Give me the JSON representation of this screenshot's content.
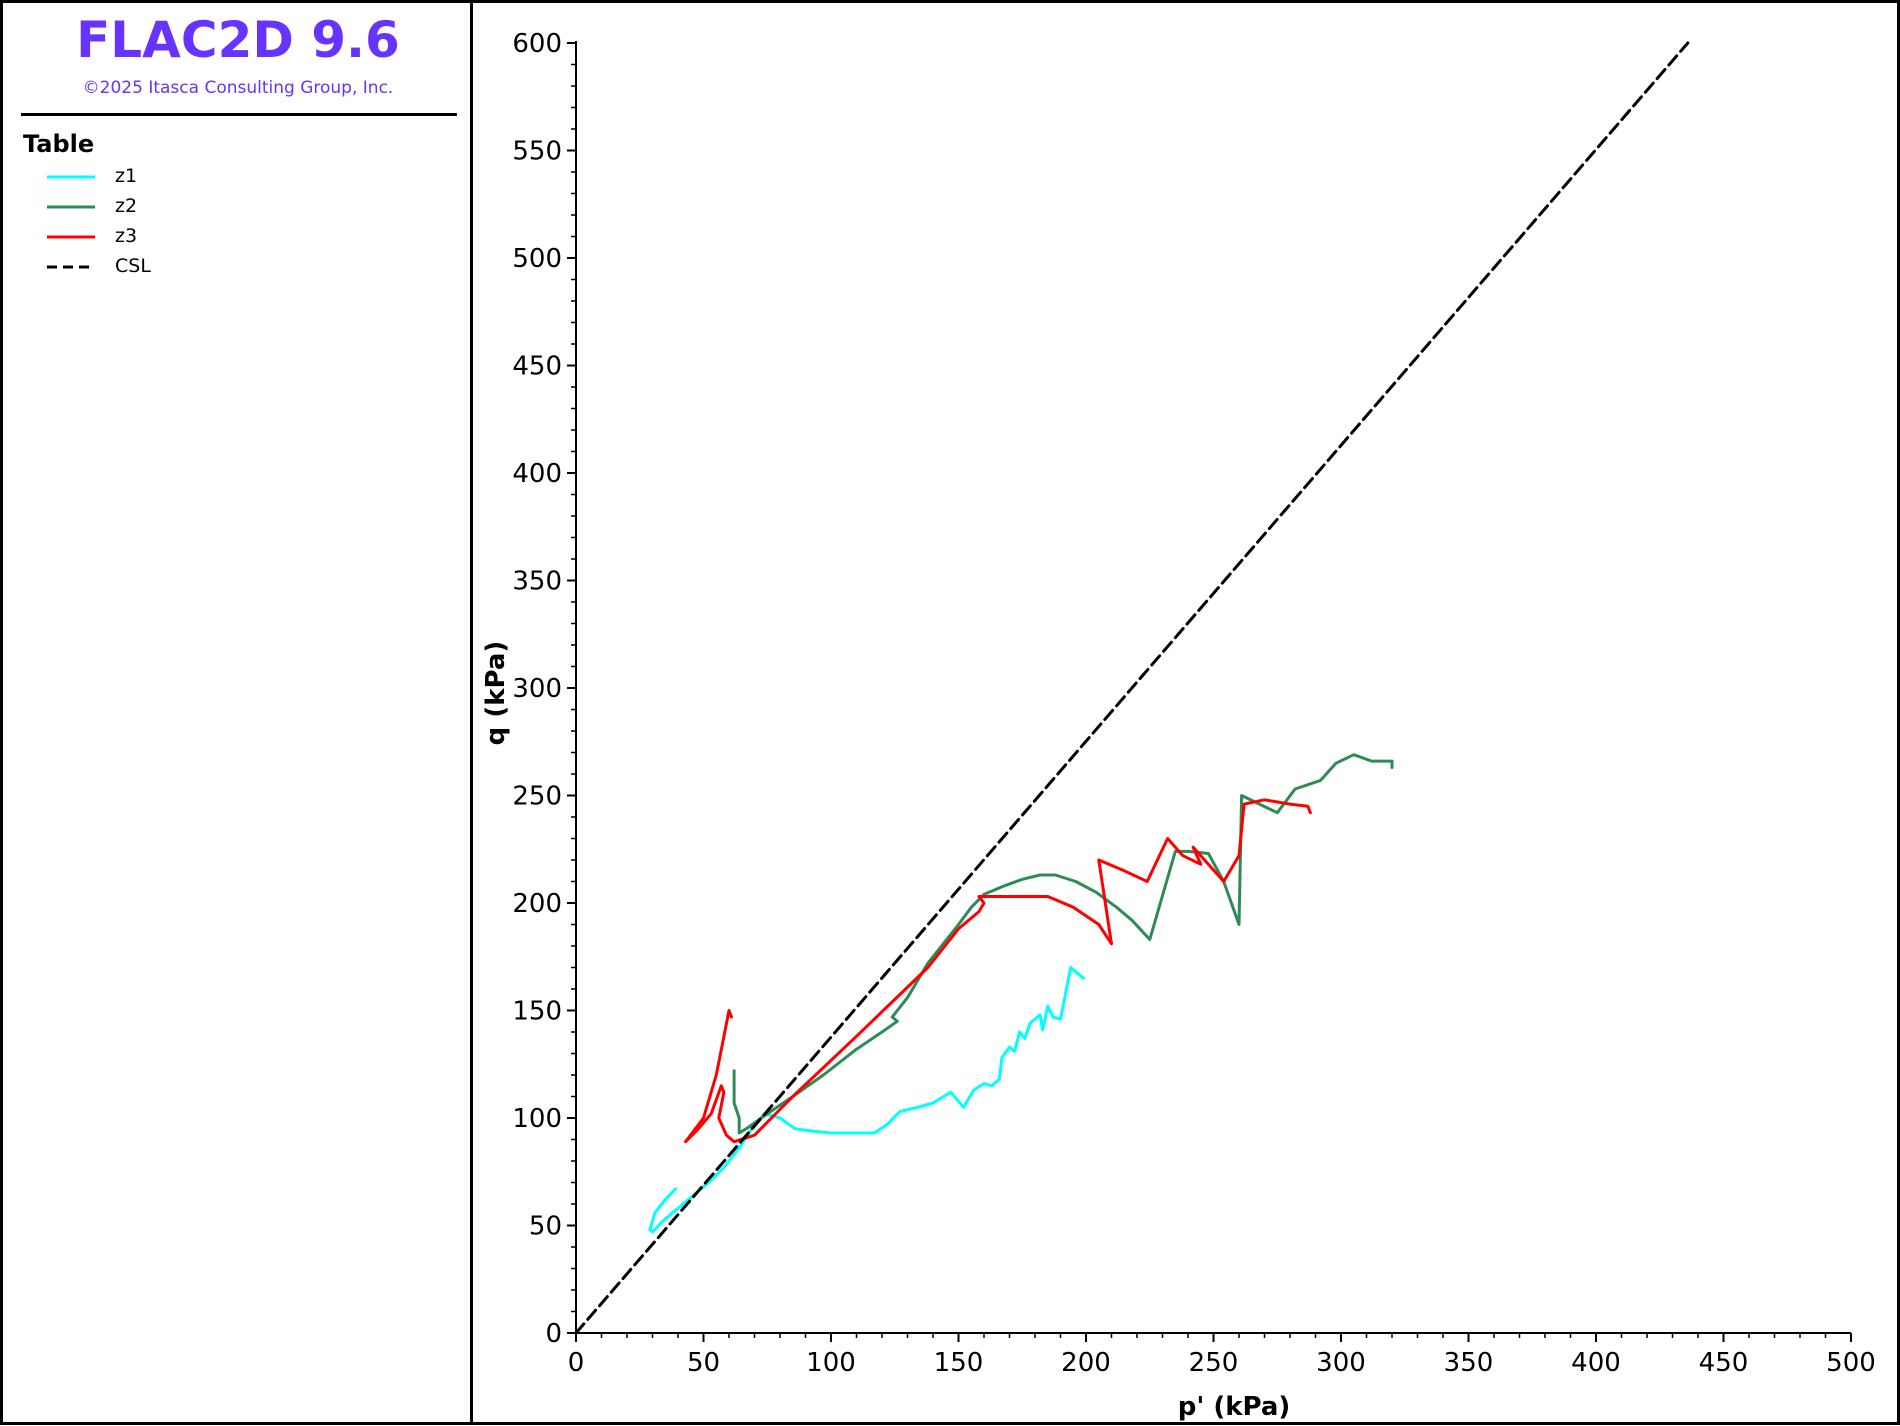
{
  "app": {
    "title": "FLAC2D 9.6",
    "copyright": "©2025 Itasca Consulting Group, Inc."
  },
  "legend": {
    "title": "Table",
    "items": [
      {
        "label": "z1",
        "color": "#00ffff",
        "dash": "solid"
      },
      {
        "label": "z2",
        "color": "#2e8b57",
        "dash": "solid"
      },
      {
        "label": "z3",
        "color": "#ff0000",
        "dash": "solid"
      },
      {
        "label": "CSL",
        "color": "#000000",
        "dash": "dashed"
      }
    ]
  },
  "chart_data": {
    "type": "line",
    "xlabel": "p' (kPa)",
    "ylabel": "q (kPa)",
    "xlim": [
      0,
      500
    ],
    "ylim": [
      0,
      600
    ],
    "xticks": [
      0,
      50,
      100,
      150,
      200,
      250,
      300,
      350,
      400,
      450,
      500
    ],
    "yticks": [
      0,
      50,
      100,
      150,
      200,
      250,
      300,
      350,
      400,
      450,
      500,
      550,
      600
    ],
    "grid": false,
    "legend_placement": "left-panel",
    "series": [
      {
        "name": "z1",
        "color": "#00ffff",
        "dash": "solid",
        "x": [
          39,
          35,
          31,
          29,
          30,
          34,
          40,
          46,
          52,
          58,
          64,
          70,
          74,
          80,
          86,
          92,
          100,
          110,
          117,
          122,
          127,
          134,
          140,
          147,
          152,
          156,
          160,
          163,
          166,
          167,
          170,
          172,
          174,
          176,
          178,
          180,
          182,
          183,
          185,
          187,
          190,
          194,
          199
        ],
        "y": [
          67,
          62,
          56,
          48,
          47,
          52,
          58,
          64,
          70,
          77,
          86,
          97,
          102,
          100,
          95,
          94,
          93,
          93,
          93,
          97,
          103,
          105,
          107,
          112,
          105,
          113,
          116,
          115,
          118,
          128,
          133,
          131,
          140,
          137,
          144,
          146,
          148,
          141,
          152,
          147,
          146,
          170,
          165
        ]
      },
      {
        "name": "z2",
        "color": "#2e8b57",
        "dash": "solid",
        "x": [
          62,
          62,
          64,
          64,
          68,
          75,
          85,
          97,
          110,
          120,
          126,
          124,
          130,
          138,
          150,
          155,
          160,
          168,
          175,
          182,
          188,
          196,
          204,
          212,
          218,
          225,
          235,
          240,
          248,
          254,
          260,
          261,
          268,
          275,
          282,
          292,
          298,
          305,
          312,
          320,
          320
        ],
        "y": [
          122,
          107,
          100,
          93,
          96,
          102,
          110,
          120,
          132,
          140,
          145,
          147,
          156,
          172,
          190,
          198,
          204,
          208,
          211,
          213,
          213,
          210,
          205,
          198,
          192,
          183,
          224,
          224,
          223,
          210,
          190,
          250,
          246,
          242,
          253,
          257,
          265,
          269,
          266,
          266,
          263
        ]
      },
      {
        "name": "z3",
        "color": "#ff0000",
        "dash": "solid",
        "x": [
          61,
          60,
          55,
          50,
          43,
          48,
          53,
          57,
          58,
          56,
          59,
          62,
          70,
          85,
          110,
          138,
          150,
          158,
          160,
          158,
          172,
          185,
          195,
          205,
          210,
          205,
          215,
          224,
          232,
          238,
          245,
          242,
          254,
          260,
          262,
          270,
          280,
          287,
          288
        ],
        "y": [
          147,
          150,
          120,
          100,
          89,
          95,
          102,
          115,
          112,
          100,
          92,
          89,
          92,
          110,
          138,
          170,
          188,
          196,
          200,
          203,
          203,
          203,
          198,
          190,
          181,
          220,
          215,
          210,
          230,
          222,
          218,
          226,
          210,
          222,
          246,
          248,
          246,
          245,
          242
        ]
      },
      {
        "name": "CSL",
        "color": "#000000",
        "dash": "dashed",
        "x": [
          0,
          436
        ],
        "y": [
          0,
          600
        ]
      }
    ]
  }
}
